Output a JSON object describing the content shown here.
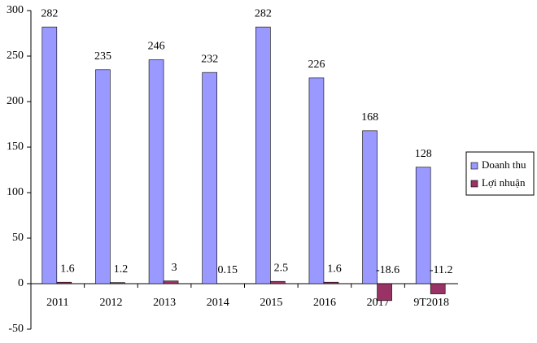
{
  "chart_data": {
    "type": "bar",
    "categories": [
      "2011",
      "2012",
      "2013",
      "2014",
      "2015",
      "2016",
      "2017",
      "9T2018"
    ],
    "series": [
      {
        "name": "Doanh thu",
        "color": "#9999ff",
        "values": [
          282,
          235,
          246,
          232,
          282,
          226,
          168,
          128
        ]
      },
      {
        "name": "Lợi nhuận",
        "color": "#993366",
        "values": [
          1.6,
          1.2,
          3,
          0.15,
          2.5,
          1.6,
          -18.6,
          -11.2
        ]
      }
    ],
    "ylim": [
      -50,
      300
    ],
    "yticks": [
      -50,
      0,
      50,
      100,
      150,
      200,
      250,
      300
    ],
    "legend": "right"
  }
}
